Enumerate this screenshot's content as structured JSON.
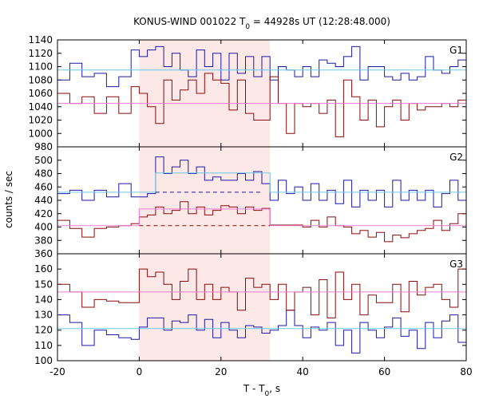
{
  "chart_data": {
    "type": "line",
    "title_parts": {
      "prefix": "KONUS-WIND 001022 T",
      "sub": "0",
      "suffix": " = 44928s UT (12:28:48.000)"
    },
    "xlabel_parts": {
      "prefix": "T - T",
      "sub": "0",
      "suffix": ", s"
    },
    "ylabel": "counts / sec",
    "xlim": [
      -20,
      80
    ],
    "x_ticks": [
      -20,
      0,
      20,
      40,
      60,
      80
    ],
    "shaded_interval": [
      0,
      32
    ],
    "shade_color": "#fde8e8",
    "colors": {
      "blue": "#1a1aa6",
      "red": "#8b0a0a",
      "cyan": "#6cc8e8",
      "pink": "#f07ad0"
    },
    "panels": [
      {
        "label": "G1",
        "ylim": [
          980,
          1140
        ],
        "y_ticks": [
          980,
          1000,
          1020,
          1040,
          1060,
          1080,
          1100,
          1120,
          1140
        ],
        "series": [
          {
            "color": "blue",
            "x": [
              -20,
              -17,
              -14,
              -11,
              -8,
              -5,
              -2,
              0,
              2,
              4,
              6,
              8,
              10,
              12,
              14,
              16,
              18,
              20,
              22,
              24,
              26,
              28,
              30,
              32,
              34,
              36,
              38,
              40,
              42,
              44,
              46,
              48,
              50,
              52,
              54,
              56,
              58,
              60,
              62,
              64,
              66,
              68,
              70,
              72,
              74,
              76,
              78
            ],
            "y": [
              1080,
              1105,
              1085,
              1090,
              1070,
              1085,
              1125,
              1115,
              1125,
              1130,
              1100,
              1120,
              1095,
              1085,
              1125,
              1100,
              1120,
              1080,
              1120,
              1090,
              1115,
              1085,
              1115,
              1080,
              1100,
              1095,
              1085,
              1100,
              1085,
              1110,
              1105,
              1100,
              1115,
              1130,
              1080,
              1100,
              1100,
              1085,
              1080,
              1090,
              1080,
              1085,
              1115,
              1095,
              1090,
              1100,
              1110
            ],
            "end": 80
          },
          {
            "color": "red",
            "x": [
              -20,
              -17,
              -14,
              -11,
              -8,
              -5,
              -2,
              0,
              2,
              4,
              6,
              8,
              10,
              12,
              14,
              16,
              18,
              20,
              22,
              24,
              26,
              28,
              30,
              32,
              34,
              36,
              38,
              40,
              42,
              44,
              46,
              48,
              50,
              52,
              54,
              56,
              58,
              60,
              62,
              64,
              66,
              68,
              70,
              72,
              74,
              76,
              78
            ],
            "y": [
              1060,
              1045,
              1055,
              1030,
              1055,
              1030,
              1070,
              1060,
              1040,
              1015,
              1080,
              1050,
              1065,
              1080,
              1060,
              1090,
              1080,
              1075,
              1035,
              1080,
              1030,
              1020,
              1020,
              1085,
              1045,
              1000,
              1045,
              1040,
              1045,
              1030,
              1050,
              995,
              1080,
              1055,
              1020,
              1050,
              1010,
              1040,
              1050,
              1020,
              1045,
              1035,
              1040,
              1040,
              1045,
              1040,
              1050
            ],
            "end": 80
          },
          {
            "color": "cyan",
            "x": [
              -20
            ],
            "y": [
              1095
            ],
            "end": 80
          },
          {
            "color": "pink",
            "x": [
              -20
            ],
            "y": [
              1045
            ],
            "end": 80
          }
        ]
      },
      {
        "label": "G2",
        "ylim": [
          360,
          520
        ],
        "y_ticks": [
          360,
          380,
          400,
          420,
          440,
          460,
          480,
          500
        ],
        "series": [
          {
            "color": "blue",
            "x": [
              -20,
              -17,
              -14,
              -11,
              -8,
              -5,
              -2,
              0,
              2,
              4,
              6,
              8,
              10,
              12,
              14,
              16,
              18,
              20,
              22,
              24,
              26,
              28,
              30,
              32,
              34,
              36,
              38,
              40,
              42,
              44,
              46,
              48,
              50,
              52,
              54,
              56,
              58,
              60,
              62,
              64,
              66,
              68,
              70,
              72,
              74,
              76,
              78
            ],
            "y": [
              450,
              455,
              440,
              455,
              445,
              465,
              445,
              445,
              450,
              505,
              480,
              490,
              500,
              480,
              490,
              470,
              475,
              470,
              470,
              480,
              470,
              483,
              465,
              440,
              470,
              450,
              460,
              440,
              465,
              440,
              455,
              435,
              470,
              430,
              455,
              440,
              455,
              430,
              470,
              440,
              455,
              440,
              455,
              430,
              450,
              470,
              440
            ],
            "end": 80
          },
          {
            "color": "red",
            "x": [
              -20,
              -17,
              -14,
              -11,
              -8,
              -5,
              -2,
              0,
              2,
              4,
              6,
              8,
              10,
              12,
              14,
              16,
              18,
              20,
              22,
              24,
              26,
              28,
              30,
              32,
              34,
              36,
              38,
              40,
              42,
              44,
              46,
              48,
              50,
              52,
              54,
              56,
              58,
              60,
              62,
              64,
              66,
              68,
              70,
              72,
              74,
              76,
              78
            ],
            "y": [
              410,
              398,
              385,
              398,
              400,
              402,
              405,
              415,
              418,
              430,
              420,
              425,
              438,
              420,
              430,
              418,
              425,
              432,
              430,
              420,
              430,
              425,
              428,
              403,
              403,
              403,
              403,
              400,
              410,
              400,
              415,
              402,
              400,
              390,
              395,
              385,
              392,
              378,
              388,
              384,
              390,
              395,
              398,
              410,
              395,
              405,
              420
            ],
            "end": 80
          },
          {
            "color": "cyan",
            "x": [
              -20,
              4,
              32
            ],
            "y": [
              452,
              481,
              452
            ],
            "end": 80
          },
          {
            "color": "pink",
            "x": [
              -20,
              0,
              32
            ],
            "y": [
              402,
              427,
              402
            ],
            "end": 80
          },
          {
            "color": "blue",
            "dash": true,
            "x": [
              4
            ],
            "y": [
              452
            ],
            "end": 30
          },
          {
            "color": "red",
            "dash": true,
            "x": [
              0
            ],
            "y": [
              402
            ],
            "end": 32
          }
        ]
      },
      {
        "label": "G3",
        "ylim": [
          100,
          170
        ],
        "y_ticks": [
          100,
          110,
          120,
          130,
          140,
          150,
          160
        ],
        "series": [
          {
            "color": "blue",
            "x": [
              -20,
              -17,
              -14,
              -11,
              -8,
              -5,
              -2,
              0,
              2,
              4,
              6,
              8,
              10,
              12,
              14,
              16,
              18,
              20,
              22,
              24,
              26,
              28,
              30,
              32,
              34,
              36,
              38,
              40,
              42,
              44,
              46,
              48,
              50,
              52,
              54,
              56,
              58,
              60,
              62,
              64,
              66,
              68,
              70,
              72,
              74,
              76,
              78
            ],
            "y": [
              130,
              125,
              110,
              120,
              117,
              115,
              114,
              122,
              128,
              128,
              120,
              126,
              125,
              130,
              120,
              127,
              115,
              125,
              120,
              115,
              123,
              122,
              118,
              120,
              123,
              133,
              123,
              115,
              122,
              120,
              125,
              110,
              120,
              105,
              125,
              120,
              115,
              122,
              128,
              116,
              120,
              108,
              125,
              115,
              126,
              130,
              112
            ],
            "end": 80
          },
          {
            "color": "red",
            "x": [
              -20,
              -17,
              -14,
              -11,
              -8,
              -5,
              -2,
              0,
              2,
              4,
              6,
              8,
              10,
              12,
              14,
              16,
              18,
              20,
              22,
              24,
              26,
              28,
              30,
              32,
              34,
              36,
              38,
              40,
              42,
              44,
              46,
              48,
              50,
              52,
              54,
              56,
              58,
              60,
              62,
              64,
              66,
              68,
              70,
              72,
              74,
              76,
              78
            ],
            "y": [
              150,
              145,
              135,
              140,
              139,
              138,
              138,
              160,
              155,
              158,
              150,
              140,
              152,
              160,
              140,
              150,
              140,
              148,
              145,
              133,
              154,
              148,
              150,
              140,
              150,
              133,
              145,
              148,
              130,
              153,
              128,
              158,
              140,
              150,
              130,
              143,
              138,
              138,
              150,
              132,
              152,
              143,
              148,
              150,
              140,
              135,
              160
            ],
            "end": 80
          },
          {
            "color": "cyan",
            "x": [
              -20
            ],
            "y": [
              121
            ],
            "end": 80
          },
          {
            "color": "pink",
            "x": [
              -20
            ],
            "y": [
              145
            ],
            "end": 80
          }
        ]
      }
    ]
  }
}
